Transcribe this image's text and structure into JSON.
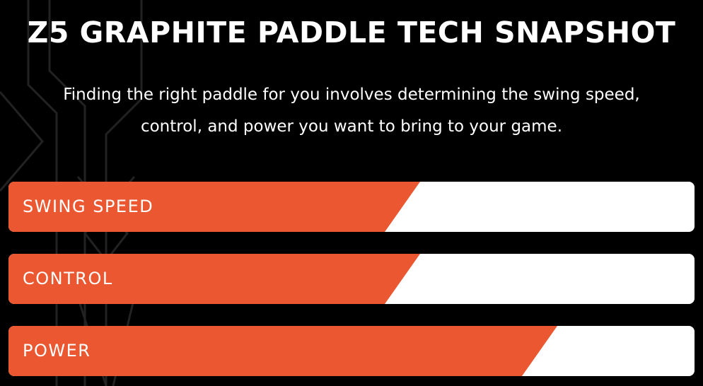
{
  "title": "Z5 GRAPHITE PADDLE TECH SNAPSHOT",
  "subtitle_lines": [
    "Finding the right paddle for you involves determining the swing speed,",
    "control, and power you want to bring to your game."
  ],
  "accent_color": "#EA5730",
  "bars": [
    {
      "label": "SWING SPEED",
      "level_percent": 60
    },
    {
      "label": "CONTROL",
      "level_percent": 60
    },
    {
      "label": "POWER",
      "level_percent": 80
    }
  ]
}
